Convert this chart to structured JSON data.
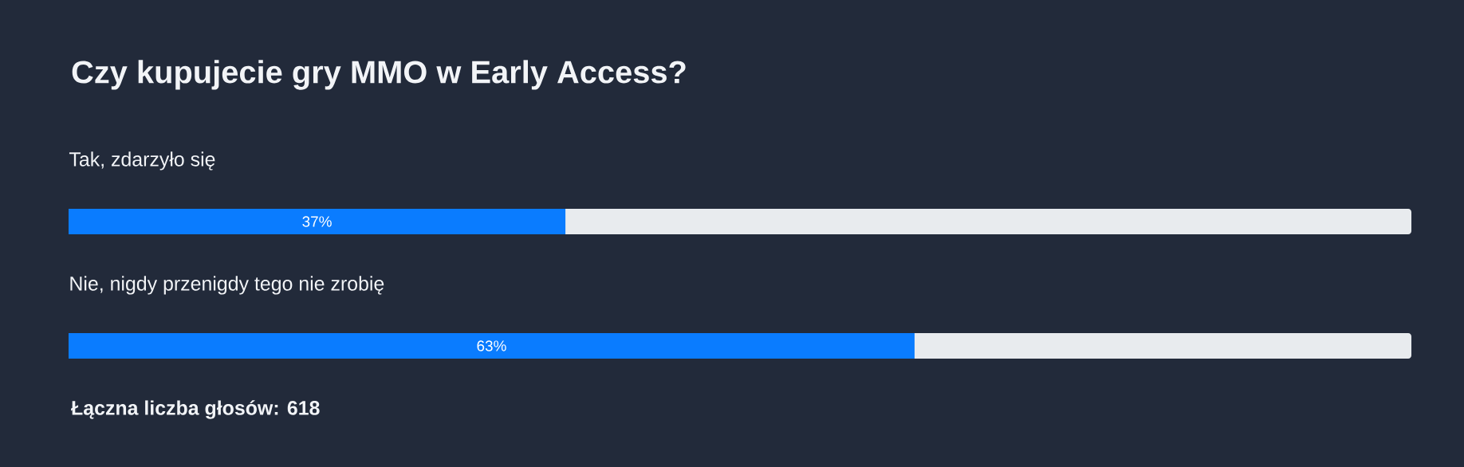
{
  "chart_data": {
    "type": "bar",
    "orientation": "horizontal",
    "title": "Czy kupujecie gry MMO w Early Access?",
    "categories": [
      "Tak, zdarzyło się",
      "Nie, nigdy przenigdy tego nie zrobię"
    ],
    "values": [
      37,
      63
    ],
    "value_labels": [
      "37%",
      "63%"
    ],
    "color": "#0a7cff",
    "xlim": [
      0,
      100
    ],
    "annotations": [
      "Łączna liczba głosów: 618"
    ]
  }
}
